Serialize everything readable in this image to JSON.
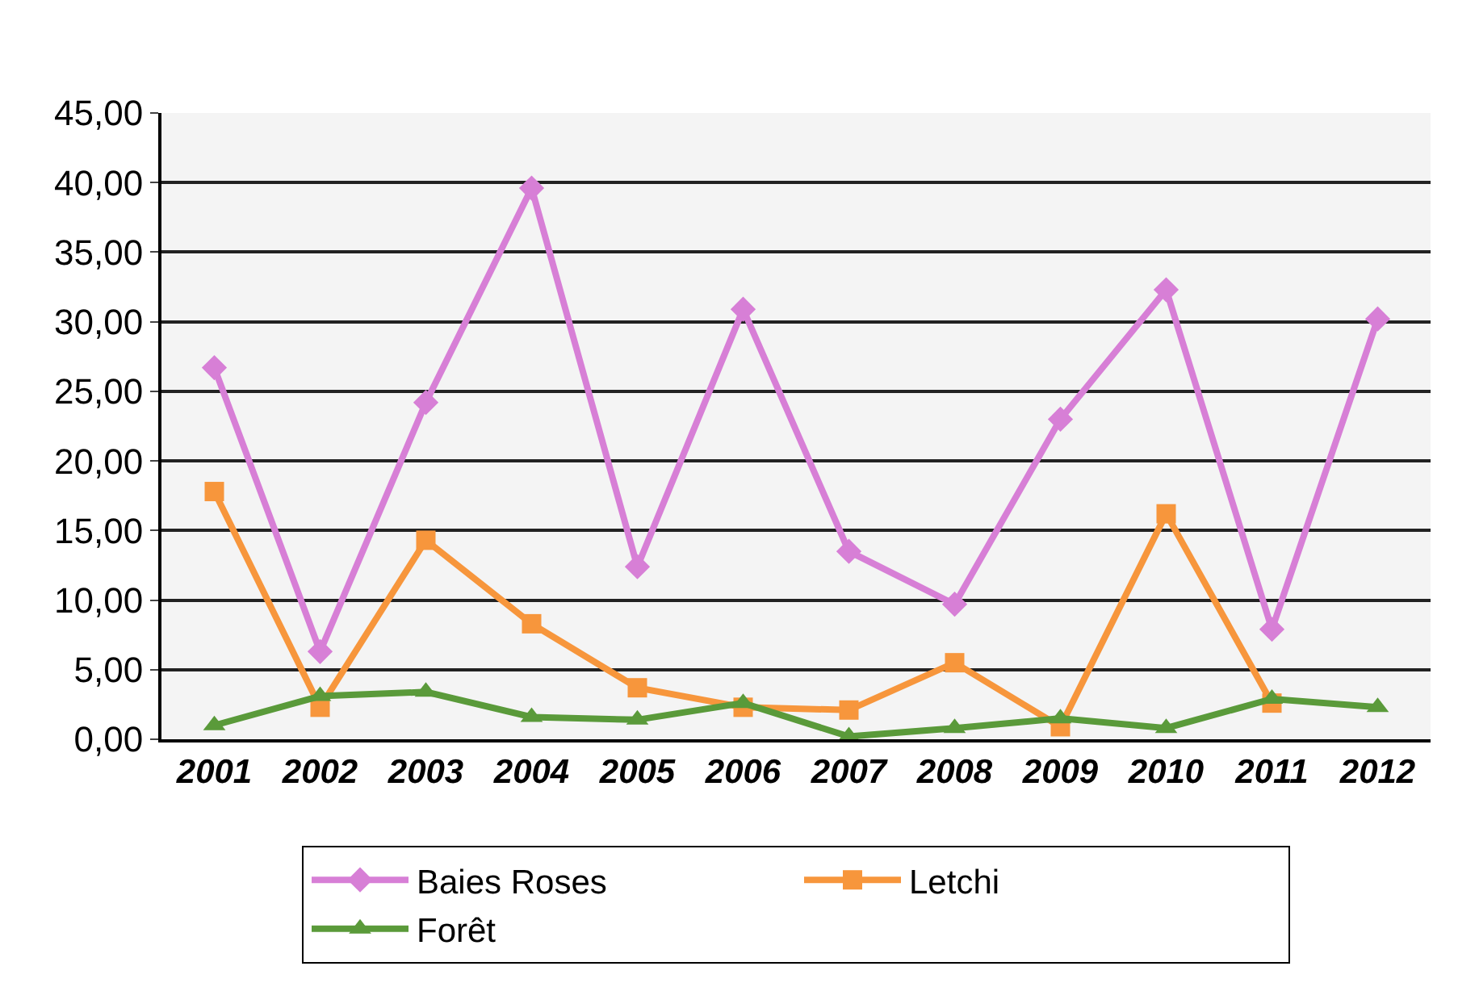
{
  "chart_data": {
    "type": "line",
    "categories": [
      "2001",
      "2002",
      "2003",
      "2004",
      "2005",
      "2006",
      "2007",
      "2008",
      "2009",
      "2010",
      "2011",
      "2012"
    ],
    "series": [
      {
        "name": "Baies Roses",
        "color": "#d77fd6",
        "marker": "diamond",
        "values": [
          26.7,
          6.3,
          24.2,
          39.6,
          12.4,
          30.9,
          13.5,
          9.7,
          23.0,
          32.3,
          7.9,
          30.2
        ]
      },
      {
        "name": "Letchi",
        "color": "#f7963c",
        "marker": "square",
        "values": [
          17.8,
          2.3,
          14.3,
          8.3,
          3.7,
          2.3,
          2.1,
          5.5,
          0.9,
          16.2,
          2.6,
          null
        ]
      },
      {
        "name": "Forêt",
        "color": "#5a9a3a",
        "marker": "triangle",
        "values": [
          1.0,
          3.1,
          3.4,
          1.6,
          1.4,
          2.6,
          0.2,
          0.8,
          1.5,
          0.8,
          2.9,
          2.3
        ]
      }
    ],
    "ylim": [
      0,
      45
    ],
    "yticks": [
      {
        "value": 0,
        "label": "0,00"
      },
      {
        "value": 5,
        "label": "5,00"
      },
      {
        "value": 10,
        "label": "10,00"
      },
      {
        "value": 15,
        "label": "15,00"
      },
      {
        "value": 20,
        "label": "20,00"
      },
      {
        "value": 25,
        "label": "25,00"
      },
      {
        "value": 30,
        "label": "30,00"
      },
      {
        "value": 35,
        "label": "35,00"
      },
      {
        "value": 40,
        "label": "40,00"
      },
      {
        "value": 45,
        "label": "45,00"
      }
    ],
    "grid": "y",
    "legend": "bottom",
    "line_style": "solid"
  }
}
